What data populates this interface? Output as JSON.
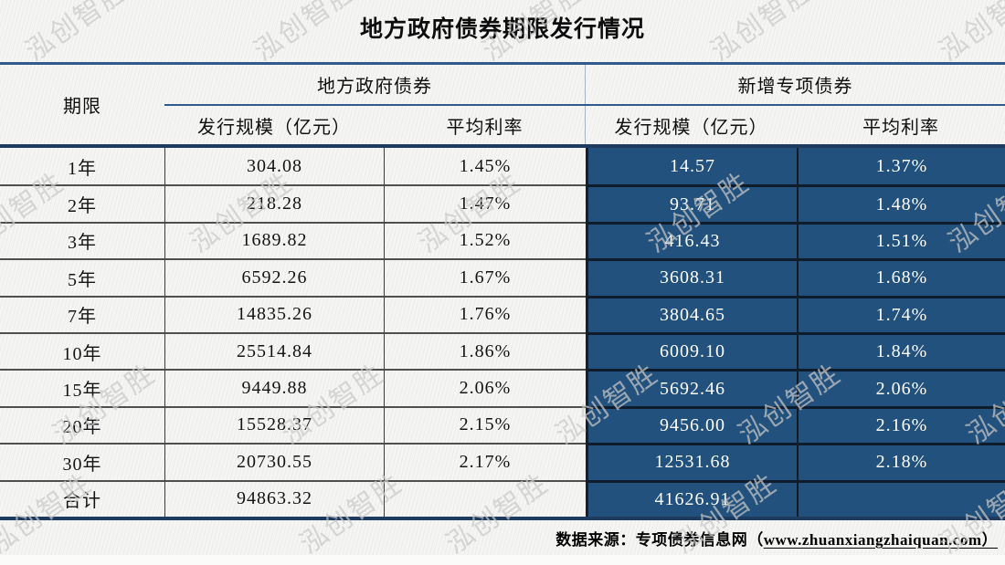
{
  "title": "地方政府债券期限发行情况",
  "watermark": {
    "text": "泓创智胜"
  },
  "table": {
    "term_header": "期限",
    "groups": [
      {
        "label": "地方政府债券"
      },
      {
        "label": "新增专项债券"
      }
    ],
    "subheaders": [
      "发行规模（亿元）",
      "平均利率",
      "发行规模（亿元）",
      "平均利率"
    ],
    "rows": [
      {
        "term": "1年",
        "lg_scale": "304.08",
        "lg_rate": "1.45%",
        "sp_scale": "14.57",
        "sp_rate": "1.37%"
      },
      {
        "term": "2年",
        "lg_scale": "218.28",
        "lg_rate": "1.47%",
        "sp_scale": "93.71",
        "sp_rate": "1.48%"
      },
      {
        "term": "3年",
        "lg_scale": "1689.82",
        "lg_rate": "1.52%",
        "sp_scale": "416.43",
        "sp_rate": "1.51%"
      },
      {
        "term": "5年",
        "lg_scale": "6592.26",
        "lg_rate": "1.67%",
        "sp_scale": "3608.31",
        "sp_rate": "1.68%"
      },
      {
        "term": "7年",
        "lg_scale": "14835.26",
        "lg_rate": "1.76%",
        "sp_scale": "3804.65",
        "sp_rate": "1.74%"
      },
      {
        "term": "10年",
        "lg_scale": "25514.84",
        "lg_rate": "1.86%",
        "sp_scale": "6009.10",
        "sp_rate": "1.84%"
      },
      {
        "term": "15年",
        "lg_scale": "9449.88",
        "lg_rate": "2.06%",
        "sp_scale": "5692.46",
        "sp_rate": "2.06%"
      },
      {
        "term": "20年",
        "lg_scale": "15528.37",
        "lg_rate": "2.15%",
        "sp_scale": "9456.00",
        "sp_rate": "2.16%"
      },
      {
        "term": "30年",
        "lg_scale": "20730.55",
        "lg_rate": "2.17%",
        "sp_scale": "12531.68",
        "sp_rate": "2.18%"
      },
      {
        "term": "合计",
        "lg_scale": "94863.32",
        "lg_rate": "",
        "sp_scale": "41626.91",
        "sp_rate": ""
      }
    ]
  },
  "footer": {
    "label": "数据来源：",
    "site": "专项债券信息网（",
    "url": "www.zhuanxiangzhaiquan.com",
    "close": "）"
  },
  "colors": {
    "dark_cell_bg": "#21517c",
    "heavy_rule": "#1d3a5f",
    "blue_rule": "#2e5a8c",
    "dark_cell_text": "#ffffff",
    "light_cell_text": "#141414",
    "watermark": "#c9c9c9"
  },
  "chart_data": {
    "type": "table",
    "title": "地方政府债券期限发行情况",
    "column_groups": [
      "地方政府债券",
      "新增专项债券"
    ],
    "columns": [
      "期限",
      "地方政府债券 发行规模（亿元）",
      "地方政府债券 平均利率",
      "新增专项债券 发行规模（亿元）",
      "新增专项债券 平均利率"
    ],
    "rows": [
      [
        "1年",
        304.08,
        "1.45%",
        14.57,
        "1.37%"
      ],
      [
        "2年",
        218.28,
        "1.47%",
        93.71,
        "1.48%"
      ],
      [
        "3年",
        1689.82,
        "1.52%",
        416.43,
        "1.51%"
      ],
      [
        "5年",
        6592.26,
        "1.67%",
        3608.31,
        "1.68%"
      ],
      [
        "7年",
        14835.26,
        "1.76%",
        3804.65,
        "1.74%"
      ],
      [
        "10年",
        25514.84,
        "1.86%",
        6009.1,
        "1.84%"
      ],
      [
        "15年",
        9449.88,
        "2.06%",
        5692.46,
        "2.06%"
      ],
      [
        "20年",
        15528.37,
        "2.15%",
        9456.0,
        "2.16%"
      ],
      [
        "30年",
        20730.55,
        "2.17%",
        12531.68,
        "2.18%"
      ],
      [
        "合计",
        94863.32,
        "",
        41626.91,
        ""
      ]
    ],
    "source": "数据来源： 专项债券信息网（www.zhuanxiangzhaiquan.com）"
  }
}
